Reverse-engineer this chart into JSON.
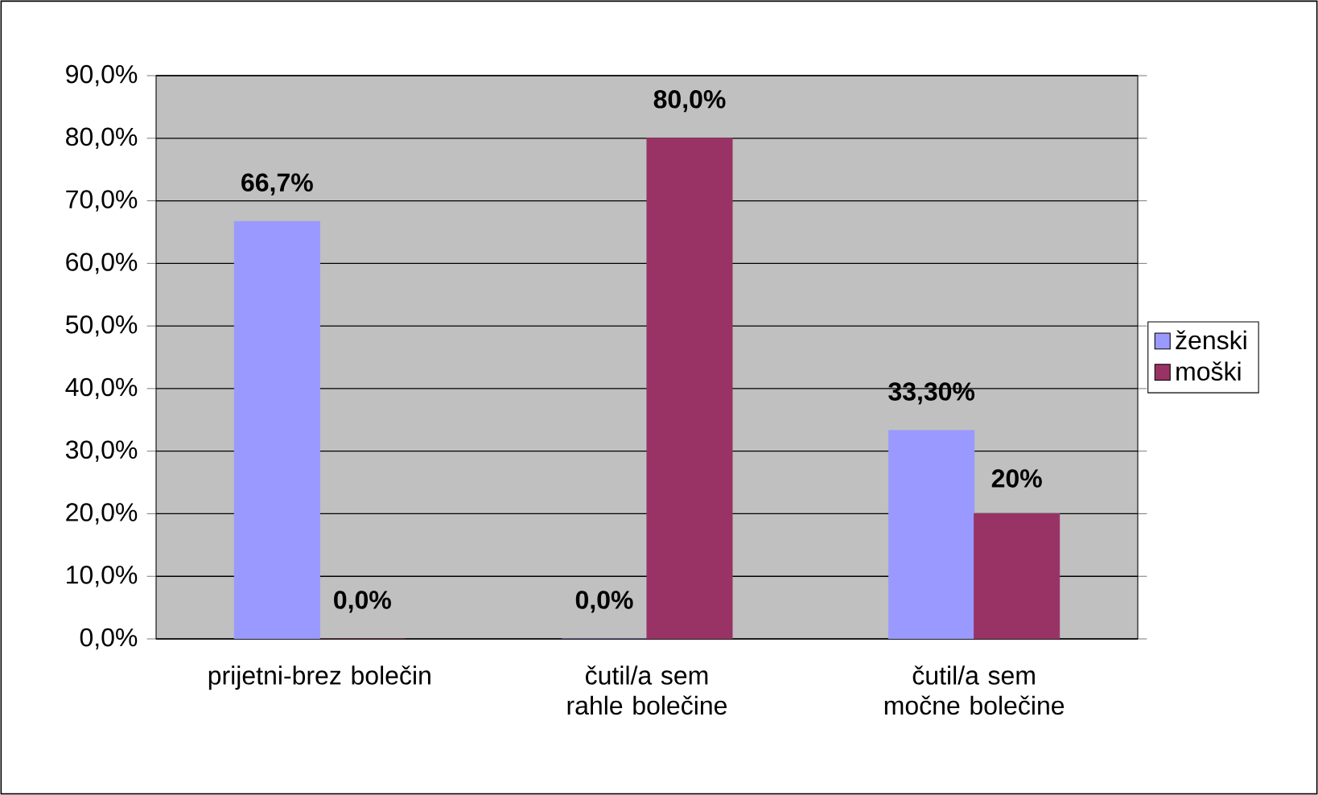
{
  "chart_data": {
    "type": "bar",
    "categories": [
      "prijetni-brez bolečin",
      "čutil/a sem rahle bolečine",
      "čutil/a sem močne bolečine"
    ],
    "series": [
      {
        "name": "ženski",
        "color": "#9999ff",
        "values": [
          66.7,
          0.0,
          33.3
        ],
        "value_labels": [
          "66,7%",
          "0,0%",
          "33,30%"
        ]
      },
      {
        "name": "moški",
        "color": "#993366",
        "values": [
          0.0,
          80.0,
          20.0
        ],
        "value_labels": [
          "0,0%",
          "80,0%",
          "20%"
        ]
      }
    ],
    "ylim": [
      0,
      90
    ],
    "yticks": [
      {
        "value": 0,
        "label": "0,0%"
      },
      {
        "value": 10,
        "label": "10,0%"
      },
      {
        "value": 20,
        "label": "20,0%"
      },
      {
        "value": 30,
        "label": "30,0%"
      },
      {
        "value": 40,
        "label": "40,0%"
      },
      {
        "value": 50,
        "label": "50,0%"
      },
      {
        "value": 60,
        "label": "60,0%"
      },
      {
        "value": 70,
        "label": "70,0%"
      },
      {
        "value": 80,
        "label": "80,0%"
      },
      {
        "value": 90,
        "label": "90,0%"
      }
    ],
    "grid": "y",
    "legend": "right"
  }
}
